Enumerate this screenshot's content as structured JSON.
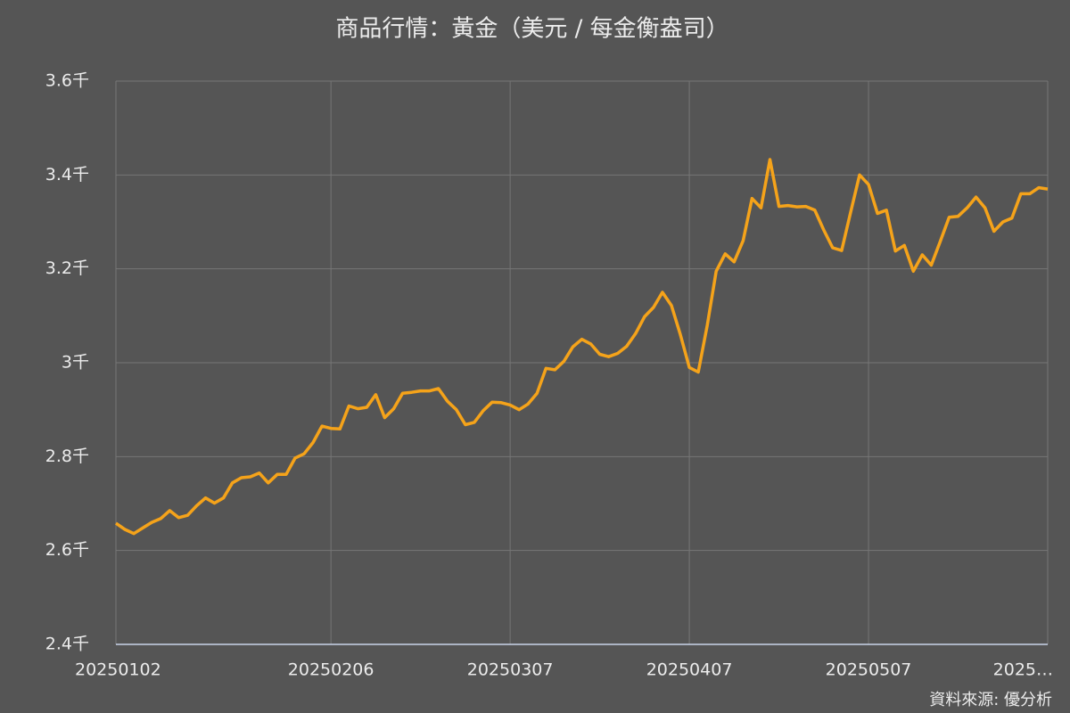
{
  "chart_data": {
    "type": "line",
    "title": "商品行情：黃金（美元 / 每金衡盎司）",
    "source": "資料來源: 優分析",
    "categories": [
      "20250102",
      null,
      null,
      null,
      null,
      null,
      null,
      null,
      null,
      null,
      null,
      null,
      null,
      null,
      null,
      null,
      null,
      null,
      null,
      null,
      null,
      null,
      null,
      null,
      "20250206",
      null,
      null,
      null,
      null,
      null,
      null,
      null,
      null,
      null,
      null,
      null,
      null,
      null,
      null,
      null,
      null,
      null,
      null,
      null,
      "20250307",
      null,
      null,
      null,
      null,
      null,
      null,
      null,
      null,
      null,
      null,
      null,
      null,
      null,
      null,
      null,
      null,
      null,
      null,
      null,
      "20250407",
      null,
      null,
      null,
      null,
      null,
      null,
      null,
      null,
      null,
      null,
      null,
      null,
      null,
      null,
      null,
      null,
      null,
      null,
      null,
      "20250507",
      null,
      null,
      null,
      null,
      null,
      null,
      null,
      null,
      null,
      null,
      null,
      null,
      null,
      null,
      null,
      null,
      null,
      null,
      null,
      "2025…"
    ],
    "series": [
      {
        "name": "黃金",
        "color": "#f5a31a",
        "values": [
          2658,
          2645,
          2636,
          2648,
          2660,
          2668,
          2685,
          2670,
          2675,
          2695,
          2712,
          2701,
          2712,
          2744,
          2755,
          2757,
          2765,
          2744,
          2762,
          2762,
          2797,
          2806,
          2830,
          2865,
          2860,
          2859,
          2908,
          2902,
          2905,
          2932,
          2883,
          2902,
          2935,
          2937,
          2940,
          2940,
          2945,
          2918,
          2900,
          2868,
          2873,
          2898,
          2916,
          2915,
          2910,
          2900,
          2912,
          2935,
          2988,
          2985,
          3003,
          3034,
          3050,
          3040,
          3018,
          3013,
          3020,
          3035,
          3062,
          3098,
          3118,
          3150,
          3122,
          3060,
          2990,
          2980,
          3080,
          3195,
          3232,
          3215,
          3260,
          3350,
          3330,
          3433,
          3333,
          3335,
          3332,
          3333,
          3325,
          3283,
          3245,
          3239,
          3320,
          3400,
          3380,
          3318,
          3325,
          3238,
          3250,
          3195,
          3230,
          3208,
          3258,
          3310,
          3312,
          3330,
          3353,
          3330,
          3280,
          3300,
          3308,
          3360,
          3360,
          3373,
          3370
        ]
      }
    ],
    "ylim": [
      2400,
      3600
    ],
    "yticks": [
      {
        "value": 2400,
        "label": "2.4千"
      },
      {
        "value": 2600,
        "label": "2.6千"
      },
      {
        "value": 2800,
        "label": "2.8千"
      },
      {
        "value": 3000,
        "label": "3千"
      },
      {
        "value": 3200,
        "label": "3.2千"
      },
      {
        "value": 3400,
        "label": "3.4千"
      },
      {
        "value": 3600,
        "label": "3.6千"
      }
    ],
    "grid": true
  }
}
